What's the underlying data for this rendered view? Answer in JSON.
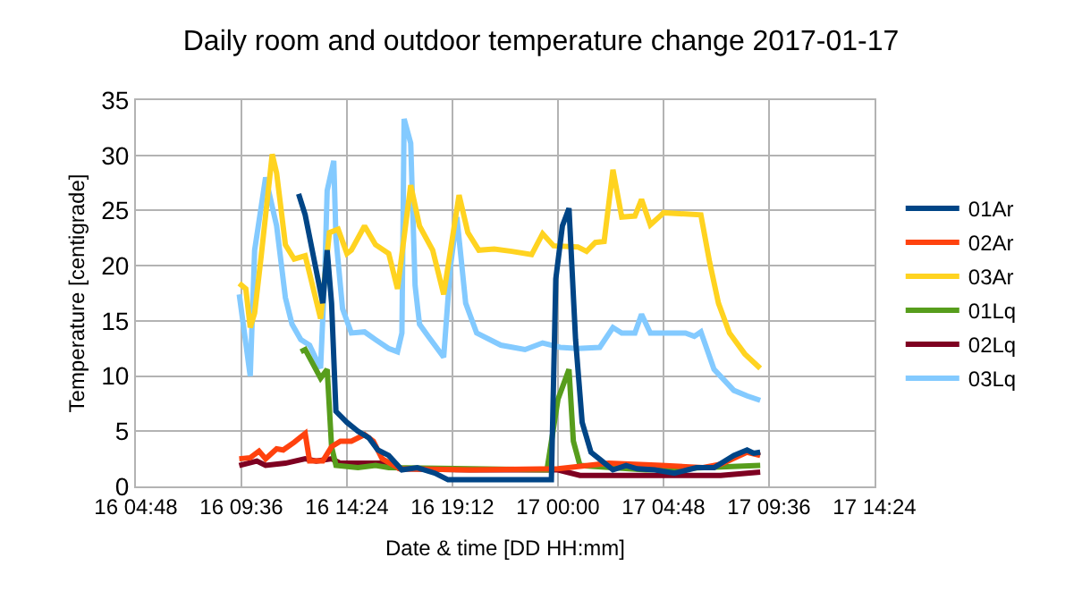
{
  "chart_data": {
    "type": "line",
    "title": "Daily room and outdoor temperature change 2017-01-17",
    "xlabel": "Date & time [DD HH:mm]",
    "ylabel": "Temperature [centigrade]",
    "xlim": [
      "2017-01-16T04:48",
      "2017-01-17T14:24"
    ],
    "xticks": [
      {
        "value": "2017-01-16T04:48",
        "label": "16 04:48"
      },
      {
        "value": "2017-01-16T09:36",
        "label": "16 09:36"
      },
      {
        "value": "2017-01-16T14:24",
        "label": "16 14:24"
      },
      {
        "value": "2017-01-16T19:12",
        "label": "16 19:12"
      },
      {
        "value": "2017-01-17T00:00",
        "label": "17 00:00"
      },
      {
        "value": "2017-01-17T04:48",
        "label": "17 04:48"
      },
      {
        "value": "2017-01-17T09:36",
        "label": "17 09:36"
      },
      {
        "value": "2017-01-17T14:24",
        "label": "17 14:24"
      }
    ],
    "ylim": [
      0,
      35
    ],
    "yticks": [
      0,
      5,
      10,
      15,
      20,
      25,
      30,
      35
    ],
    "grid": true,
    "legend": "right",
    "marker": "none",
    "line_style": "solid",
    "series": [
      {
        "name": "01Ar",
        "color": "#004586",
        "x": [
          "2017-01-16T12:12",
          "2017-01-16T12:30",
          "2017-01-16T12:54",
          "2017-01-16T13:18",
          "2017-01-16T13:30",
          "2017-01-16T13:42",
          "2017-01-16T13:54",
          "2017-01-16T14:24",
          "2017-01-16T14:54",
          "2017-01-16T15:24",
          "2017-01-16T15:48",
          "2017-01-16T16:18",
          "2017-01-16T16:54",
          "2017-01-16T17:36",
          "2017-01-16T18:24",
          "2017-01-16T19:00",
          "2017-01-16T20:24",
          "2017-01-16T21:42",
          "2017-01-16T23:42",
          "2017-01-16T23:54",
          "2017-01-17T00:12",
          "2017-01-17T00:30",
          "2017-01-17T00:48",
          "2017-01-17T01:06",
          "2017-01-17T01:30",
          "2017-01-17T02:00",
          "2017-01-17T02:30",
          "2017-01-17T03:06",
          "2017-01-17T03:36",
          "2017-01-17T04:24",
          "2017-01-17T05:18",
          "2017-01-17T05:54",
          "2017-01-17T06:18",
          "2017-01-17T07:06",
          "2017-01-17T08:00",
          "2017-01-17T08:36",
          "2017-01-17T08:54",
          "2017-01-17T09:12"
        ],
        "values": [
          26.5,
          24.6,
          20.6,
          16.6,
          21.4,
          16.6,
          6.8,
          5.8,
          5.0,
          4.4,
          3.3,
          2.8,
          1.5,
          1.7,
          1.2,
          0.6,
          0.6,
          0.6,
          0.6,
          18.8,
          23.6,
          25.2,
          13.3,
          5.8,
          3.1,
          2.3,
          1.5,
          1.9,
          1.6,
          1.5,
          1.2,
          1.5,
          1.7,
          1.7,
          2.8,
          3.3,
          3.0,
          3.1
        ]
      },
      {
        "name": "02Ar",
        "color": "#ff420e",
        "x": [
          "2017-01-16T09:30",
          "2017-01-16T10:00",
          "2017-01-16T10:24",
          "2017-01-16T10:42",
          "2017-01-16T11:12",
          "2017-01-16T11:30",
          "2017-01-16T12:00",
          "2017-01-16T12:30",
          "2017-01-16T12:42",
          "2017-01-16T13:18",
          "2017-01-16T13:42",
          "2017-01-16T14:06",
          "2017-01-16T14:36",
          "2017-01-16T15:12",
          "2017-01-16T15:36",
          "2017-01-16T16:00",
          "2017-01-16T16:48",
          "2017-01-16T20:00",
          "2017-01-17T00:00",
          "2017-01-17T02:18",
          "2017-01-17T04:42",
          "2017-01-17T06:36",
          "2017-01-17T07:24",
          "2017-01-17T08:36",
          "2017-01-17T09:12"
        ],
        "values": [
          2.5,
          2.6,
          3.2,
          2.5,
          3.4,
          3.3,
          4.0,
          4.8,
          2.3,
          2.3,
          3.6,
          4.1,
          4.1,
          4.7,
          4.1,
          2.5,
          1.6,
          1.5,
          1.6,
          2.1,
          1.9,
          1.7,
          2.0,
          3.1,
          2.8
        ]
      },
      {
        "name": "03Ar",
        "color": "#ffd320",
        "x": [
          "2017-01-16T09:30",
          "2017-01-16T09:48",
          "2017-01-16T10:00",
          "2017-01-16T10:12",
          "2017-01-16T10:30",
          "2017-01-16T11:00",
          "2017-01-16T11:12",
          "2017-01-16T11:36",
          "2017-01-16T12:00",
          "2017-01-16T12:30",
          "2017-01-16T12:42",
          "2017-01-16T13:12",
          "2017-01-16T13:36",
          "2017-01-16T14:00",
          "2017-01-16T14:24",
          "2017-01-16T14:36",
          "2017-01-16T15:12",
          "2017-01-16T15:42",
          "2017-01-16T16:18",
          "2017-01-16T16:42",
          "2017-01-16T17:18",
          "2017-01-16T17:42",
          "2017-01-16T18:18",
          "2017-01-16T18:48",
          "2017-01-16T19:30",
          "2017-01-16T19:54",
          "2017-01-16T20:24",
          "2017-01-16T21:06",
          "2017-01-16T21:54",
          "2017-01-16T22:48",
          "2017-01-16T23:18",
          "2017-01-16T23:48",
          "2017-01-17T00:54",
          "2017-01-17T01:18",
          "2017-01-17T01:42",
          "2017-01-17T02:06",
          "2017-01-17T02:30",
          "2017-01-17T02:54",
          "2017-01-17T03:30",
          "2017-01-17T03:48",
          "2017-01-17T04:12",
          "2017-01-17T04:42",
          "2017-01-17T04:48",
          "2017-01-17T06:30",
          "2017-01-17T06:54",
          "2017-01-17T07:18",
          "2017-01-17T07:48",
          "2017-01-17T08:30",
          "2017-01-17T09:12"
        ],
        "values": [
          18.4,
          17.9,
          14.4,
          15.7,
          20.9,
          30.1,
          28.4,
          21.9,
          20.6,
          20.9,
          19.3,
          15.2,
          23.0,
          23.3,
          21.1,
          21.4,
          23.6,
          21.9,
          21.1,
          17.9,
          27.3,
          23.6,
          21.4,
          17.4,
          26.4,
          23.0,
          21.4,
          21.5,
          21.3,
          21.0,
          22.9,
          21.8,
          21.7,
          21.3,
          22.1,
          22.2,
          28.7,
          24.4,
          24.5,
          26.0,
          23.7,
          24.6,
          24.8,
          24.6,
          20.3,
          16.6,
          13.9,
          12.0,
          10.7
        ]
      },
      {
        "name": "01Lq",
        "color": "#579d1c",
        "x": [
          "2017-01-16T12:18",
          "2017-01-16T12:30",
          "2017-01-16T13:12",
          "2017-01-16T13:30",
          "2017-01-16T13:42",
          "2017-01-16T13:54",
          "2017-01-16T14:54",
          "2017-01-16T15:42",
          "2017-01-16T16:18",
          "2017-01-16T20:00",
          "2017-01-16T23:30",
          "2017-01-17T00:00",
          "2017-01-17T00:30",
          "2017-01-17T00:42",
          "2017-01-17T01:00",
          "2017-01-17T04:00",
          "2017-01-17T09:12"
        ],
        "values": [
          12.2,
          12.4,
          9.8,
          10.6,
          3.6,
          1.9,
          1.7,
          1.9,
          1.7,
          1.6,
          1.5,
          7.9,
          10.6,
          4.1,
          1.9,
          1.5,
          1.9
        ]
      },
      {
        "name": "02Lq",
        "color": "#7e0021",
        "x": [
          "2017-01-16T09:30",
          "2017-01-16T10:18",
          "2017-01-16T10:42",
          "2017-01-16T11:36",
          "2017-01-16T12:30",
          "2017-01-16T13:00",
          "2017-01-16T13:42",
          "2017-01-16T14:06",
          "2017-01-16T15:42",
          "2017-01-16T16:18",
          "2017-01-16T16:48",
          "2017-01-16T20:00",
          "2017-01-17T00:00",
          "2017-01-17T01:00",
          "2017-01-17T04:00",
          "2017-01-17T07:24",
          "2017-01-17T09:12"
        ],
        "values": [
          1.9,
          2.3,
          1.9,
          2.1,
          2.5,
          2.3,
          2.5,
          2.1,
          2.1,
          2.1,
          1.6,
          1.5,
          1.5,
          1.0,
          1.0,
          1.0,
          1.3
        ]
      },
      {
        "name": "03Lq",
        "color": "#83caff",
        "x": [
          "2017-01-16T09:30",
          "2017-01-16T10:00",
          "2017-01-16T10:12",
          "2017-01-16T10:42",
          "2017-01-16T11:12",
          "2017-01-16T11:36",
          "2017-01-16T11:54",
          "2017-01-16T12:18",
          "2017-01-16T12:42",
          "2017-01-16T13:12",
          "2017-01-16T13:24",
          "2017-01-16T13:30",
          "2017-01-16T13:48",
          "2017-01-16T13:54",
          "2017-01-16T14:12",
          "2017-01-16T14:36",
          "2017-01-16T15:12",
          "2017-01-16T15:42",
          "2017-01-16T16:18",
          "2017-01-16T16:42",
          "2017-01-16T16:54",
          "2017-01-16T17:00",
          "2017-01-16T17:18",
          "2017-01-16T17:30",
          "2017-01-16T17:42",
          "2017-01-16T18:06",
          "2017-01-16T18:48",
          "2017-01-16T19:06",
          "2017-01-16T19:24",
          "2017-01-16T19:48",
          "2017-01-16T20:18",
          "2017-01-16T21:24",
          "2017-01-16T22:30",
          "2017-01-16T23:18",
          "2017-01-17T00:06",
          "2017-01-17T00:54",
          "2017-01-17T01:54",
          "2017-01-17T02:30",
          "2017-01-17T02:54",
          "2017-01-17T03:30",
          "2017-01-17T03:48",
          "2017-01-17T04:12",
          "2017-01-17T04:42",
          "2017-01-17T05:48",
          "2017-01-17T06:12",
          "2017-01-17T06:30",
          "2017-01-17T07:06",
          "2017-01-17T08:00",
          "2017-01-17T08:36",
          "2017-01-17T09:12"
        ],
        "values": [
          17.4,
          10.0,
          21.4,
          28.0,
          23.6,
          17.1,
          14.7,
          13.3,
          12.8,
          10.7,
          19.8,
          26.8,
          29.5,
          22.5,
          16.1,
          13.9,
          14.0,
          13.3,
          12.5,
          12.2,
          13.9,
          33.3,
          31.1,
          18.2,
          14.7,
          13.6,
          11.7,
          19.8,
          24.4,
          16.6,
          13.9,
          12.8,
          12.4,
          13.0,
          12.6,
          12.5,
          12.6,
          14.4,
          13.9,
          13.9,
          15.6,
          13.9,
          13.9,
          13.9,
          13.6,
          14.0,
          10.6,
          8.7,
          8.2,
          7.8
        ]
      }
    ]
  }
}
